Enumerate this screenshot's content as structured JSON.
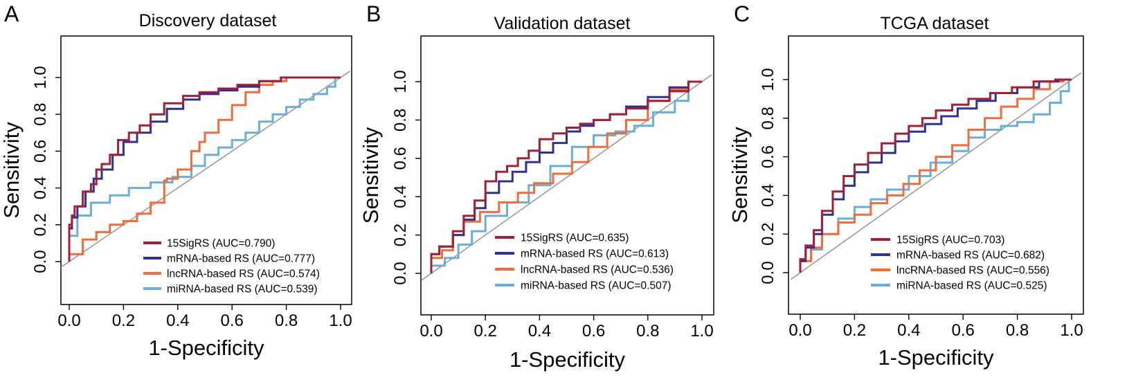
{
  "chart_data": [
    {
      "panel": "A",
      "type": "line",
      "title": "Discovery dataset",
      "xlabel": "1-Specificity",
      "ylabel": "Sensitivity",
      "xlim": [
        0,
        1
      ],
      "ylim": [
        0,
        1
      ],
      "xticks": [
        "0.0",
        "0.2",
        "0.4",
        "0.6",
        "0.8",
        "1.0"
      ],
      "yticks": [
        "0.0",
        "0.2",
        "0.4",
        "0.6",
        "0.8",
        "1.0"
      ],
      "legend_position": "bottom-right",
      "series": [
        {
          "name": "15SigRS",
          "auc_label": "(AUC=0.790)",
          "color": "#A31F34",
          "x": [
            0,
            0.01,
            0.02,
            0.05,
            0.08,
            0.1,
            0.12,
            0.15,
            0.18,
            0.22,
            0.26,
            0.3,
            0.35,
            0.42,
            0.48,
            0.55,
            0.62,
            0.7,
            0.78,
            0.85,
            0.9,
            1.0
          ],
          "y": [
            0,
            0.2,
            0.25,
            0.3,
            0.38,
            0.42,
            0.5,
            0.53,
            0.58,
            0.66,
            0.7,
            0.74,
            0.8,
            0.86,
            0.9,
            0.92,
            0.94,
            0.96,
            0.98,
            1.0,
            1.0,
            1.0
          ]
        },
        {
          "name": "mRNA-based RS",
          "auc_label": "(AUC=0.777)",
          "color": "#2E3192",
          "x": [
            0,
            0.01,
            0.03,
            0.06,
            0.09,
            0.12,
            0.16,
            0.2,
            0.25,
            0.3,
            0.36,
            0.42,
            0.48,
            0.55,
            0.62,
            0.7,
            0.78,
            0.85,
            0.9,
            1.0
          ],
          "y": [
            0,
            0.18,
            0.24,
            0.3,
            0.38,
            0.45,
            0.5,
            0.58,
            0.65,
            0.7,
            0.76,
            0.83,
            0.88,
            0.91,
            0.93,
            0.95,
            0.98,
            1.0,
            1.0,
            1.0
          ],
          "note": ""
        },
        {
          "name": "lncRNA-based RS",
          "auc_label": "(AUC=0.574)",
          "color": "#F26B3A",
          "x": [
            0,
            0.05,
            0.1,
            0.15,
            0.2,
            0.25,
            0.3,
            0.35,
            0.36,
            0.4,
            0.45,
            0.48,
            0.5,
            0.55,
            0.6,
            0.65,
            0.7,
            0.75,
            0.8,
            0.88,
            0.95,
            1.0
          ],
          "y": [
            0,
            0.04,
            0.12,
            0.16,
            0.2,
            0.22,
            0.26,
            0.32,
            0.44,
            0.45,
            0.5,
            0.6,
            0.65,
            0.7,
            0.77,
            0.85,
            0.92,
            0.96,
            0.98,
            1.0,
            1.0,
            1.0
          ]
        },
        {
          "name": "miRNA-based RS",
          "auc_label": "(AUC=0.539)",
          "color": "#6BAED6",
          "x": [
            0,
            0.03,
            0.08,
            0.15,
            0.22,
            0.3,
            0.38,
            0.45,
            0.5,
            0.55,
            0.6,
            0.65,
            0.7,
            0.75,
            0.8,
            0.85,
            0.9,
            0.95,
            0.98,
            1.0
          ],
          "y": [
            0,
            0.14,
            0.25,
            0.32,
            0.36,
            0.4,
            0.43,
            0.46,
            0.52,
            0.58,
            0.62,
            0.66,
            0.7,
            0.76,
            0.8,
            0.84,
            0.88,
            0.91,
            0.95,
            1.0
          ]
        }
      ]
    },
    {
      "panel": "B",
      "type": "line",
      "title": "Validation dataset",
      "xlabel": "1-Specificity",
      "ylabel": "Sensitivity",
      "xlim": [
        0,
        1
      ],
      "ylim": [
        0,
        1
      ],
      "xticks": [
        "0.0",
        "0.2",
        "0.4",
        "0.6",
        "0.8",
        "1.0"
      ],
      "yticks": [
        "0.0",
        "0.2",
        "0.4",
        "0.6",
        "0.8",
        "1.0"
      ],
      "legend_position": "bottom-right",
      "series": [
        {
          "name": "15SigRS",
          "auc_label": "(AUC=0.635)",
          "color": "#A31F34",
          "x": [
            0,
            0.03,
            0.08,
            0.12,
            0.16,
            0.2,
            0.24,
            0.28,
            0.32,
            0.36,
            0.4,
            0.45,
            0.5,
            0.55,
            0.6,
            0.66,
            0.72,
            0.8,
            0.88,
            0.95,
            1.0
          ],
          "y": [
            0,
            0.1,
            0.14,
            0.22,
            0.3,
            0.38,
            0.48,
            0.53,
            0.56,
            0.6,
            0.64,
            0.7,
            0.73,
            0.76,
            0.78,
            0.8,
            0.83,
            0.86,
            0.9,
            0.95,
            1.0
          ]
        },
        {
          "name": "mRNA-based RS",
          "auc_label": "(AUC=0.613)",
          "color": "#2E3192",
          "x": [
            0,
            0.03,
            0.08,
            0.12,
            0.16,
            0.2,
            0.25,
            0.3,
            0.35,
            0.4,
            0.45,
            0.5,
            0.55,
            0.6,
            0.66,
            0.72,
            0.8,
            0.88,
            0.95,
            1.0
          ],
          "y": [
            0,
            0.1,
            0.14,
            0.2,
            0.28,
            0.34,
            0.42,
            0.48,
            0.53,
            0.58,
            0.63,
            0.68,
            0.74,
            0.77,
            0.8,
            0.83,
            0.87,
            0.92,
            0.97,
            1.0
          ]
        },
        {
          "name": "lncRNA-based RS",
          "auc_label": "(AUC=0.536)",
          "color": "#F26B3A",
          "x": [
            0,
            0.04,
            0.08,
            0.12,
            0.18,
            0.25,
            0.32,
            0.38,
            0.45,
            0.52,
            0.58,
            0.65,
            0.72,
            0.8,
            0.88,
            0.95,
            1.0
          ],
          "y": [
            0,
            0.08,
            0.12,
            0.2,
            0.27,
            0.32,
            0.37,
            0.42,
            0.47,
            0.52,
            0.58,
            0.66,
            0.73,
            0.8,
            0.9,
            0.96,
            1.0
          ]
        },
        {
          "name": "miRNA-based RS",
          "auc_label": "(AUC=0.507)",
          "color": "#6BAED6",
          "x": [
            0,
            0.05,
            0.1,
            0.15,
            0.2,
            0.28,
            0.36,
            0.44,
            0.52,
            0.6,
            0.68,
            0.75,
            0.82,
            0.9,
            0.95,
            1.0
          ],
          "y": [
            0,
            0.04,
            0.08,
            0.15,
            0.22,
            0.3,
            0.37,
            0.46,
            0.56,
            0.66,
            0.72,
            0.74,
            0.77,
            0.84,
            0.9,
            1.0
          ]
        }
      ]
    },
    {
      "panel": "C",
      "type": "line",
      "title": "TCGA dataset",
      "xlabel": "1-Specificity",
      "ylabel": "Sensitivity",
      "xlim": [
        0,
        1
      ],
      "ylim": [
        0,
        1
      ],
      "xticks": [
        "0.0",
        "0.2",
        "0.4",
        "0.6",
        "0.8",
        "1.0"
      ],
      "yticks": [
        "0.0",
        "0.2",
        "0.4",
        "0.6",
        "0.8",
        "1.0"
      ],
      "legend_position": "bottom-right",
      "series": [
        {
          "name": "15SigRS",
          "auc_label": "(AUC=0.703)",
          "color": "#A31F34",
          "x": [
            0,
            0.02,
            0.05,
            0.08,
            0.12,
            0.16,
            0.2,
            0.25,
            0.3,
            0.35,
            0.4,
            0.45,
            0.5,
            0.56,
            0.62,
            0.7,
            0.78,
            0.86,
            0.94,
            1.0
          ],
          "y": [
            0,
            0.07,
            0.14,
            0.22,
            0.32,
            0.42,
            0.5,
            0.56,
            0.62,
            0.67,
            0.72,
            0.76,
            0.8,
            0.84,
            0.87,
            0.9,
            0.93,
            0.96,
            0.99,
            1.0
          ]
        },
        {
          "name": "mRNA-based RS",
          "auc_label": "(AUC=0.682)",
          "color": "#2E3192",
          "x": [
            0,
            0.02,
            0.05,
            0.08,
            0.12,
            0.16,
            0.2,
            0.25,
            0.3,
            0.35,
            0.4,
            0.46,
            0.52,
            0.58,
            0.65,
            0.72,
            0.8,
            0.88,
            0.95,
            1.0
          ],
          "y": [
            0,
            0.06,
            0.13,
            0.2,
            0.3,
            0.38,
            0.45,
            0.52,
            0.57,
            0.62,
            0.68,
            0.73,
            0.77,
            0.81,
            0.85,
            0.89,
            0.93,
            0.96,
            0.99,
            1.0
          ]
        },
        {
          "name": "lncRNA-based RS",
          "auc_label": "(AUC=0.556)",
          "color": "#F26B3A",
          "x": [
            0,
            0.04,
            0.08,
            0.14,
            0.2,
            0.26,
            0.32,
            0.38,
            0.44,
            0.5,
            0.56,
            0.62,
            0.68,
            0.74,
            0.8,
            0.86,
            0.92,
            0.97,
            1.0
          ],
          "y": [
            0,
            0.06,
            0.13,
            0.2,
            0.26,
            0.3,
            0.36,
            0.4,
            0.46,
            0.53,
            0.6,
            0.66,
            0.74,
            0.8,
            0.86,
            0.9,
            0.95,
            0.99,
            1.0
          ]
        },
        {
          "name": "miRNA-based RS",
          "auc_label": "(AUC=0.525)",
          "color": "#6BAED6",
          "x": [
            0,
            0.04,
            0.08,
            0.14,
            0.2,
            0.26,
            0.32,
            0.4,
            0.48,
            0.56,
            0.62,
            0.68,
            0.74,
            0.8,
            0.86,
            0.92,
            0.96,
            0.99,
            1.0
          ],
          "y": [
            0,
            0.06,
            0.12,
            0.2,
            0.28,
            0.34,
            0.38,
            0.43,
            0.5,
            0.57,
            0.63,
            0.7,
            0.74,
            0.76,
            0.78,
            0.82,
            0.88,
            0.94,
            1.0
          ]
        }
      ]
    }
  ]
}
